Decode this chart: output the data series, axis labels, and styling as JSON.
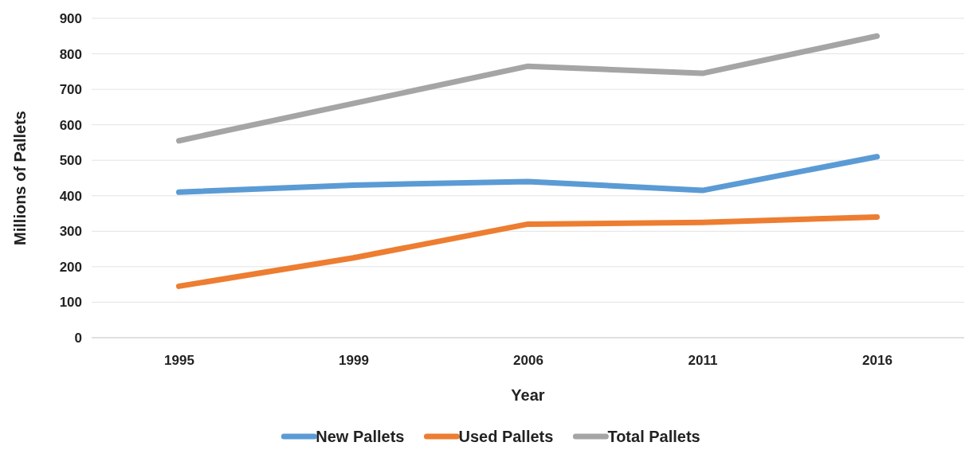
{
  "chart_data": {
    "type": "line",
    "xlabel": "Year",
    "ylabel": "Millions of Pallets",
    "categories": [
      "1995",
      "1999",
      "2006",
      "2011",
      "2016"
    ],
    "series": [
      {
        "name": "New Pallets",
        "color": "#5b9bd5",
        "values": [
          410,
          430,
          440,
          415,
          510
        ]
      },
      {
        "name": "Used Pallets",
        "color": "#ed7d31",
        "values": [
          145,
          225,
          320,
          325,
          340
        ]
      },
      {
        "name": "Total Pallets",
        "color": "#a5a5a5",
        "values": [
          555,
          660,
          765,
          745,
          850
        ]
      }
    ],
    "ylim": [
      0,
      900
    ],
    "yticks": [
      0,
      100,
      200,
      300,
      400,
      500,
      600,
      700,
      800,
      900
    ],
    "grid": "y",
    "legend": "bottom",
    "marker": "none",
    "line_style": "solid"
  }
}
